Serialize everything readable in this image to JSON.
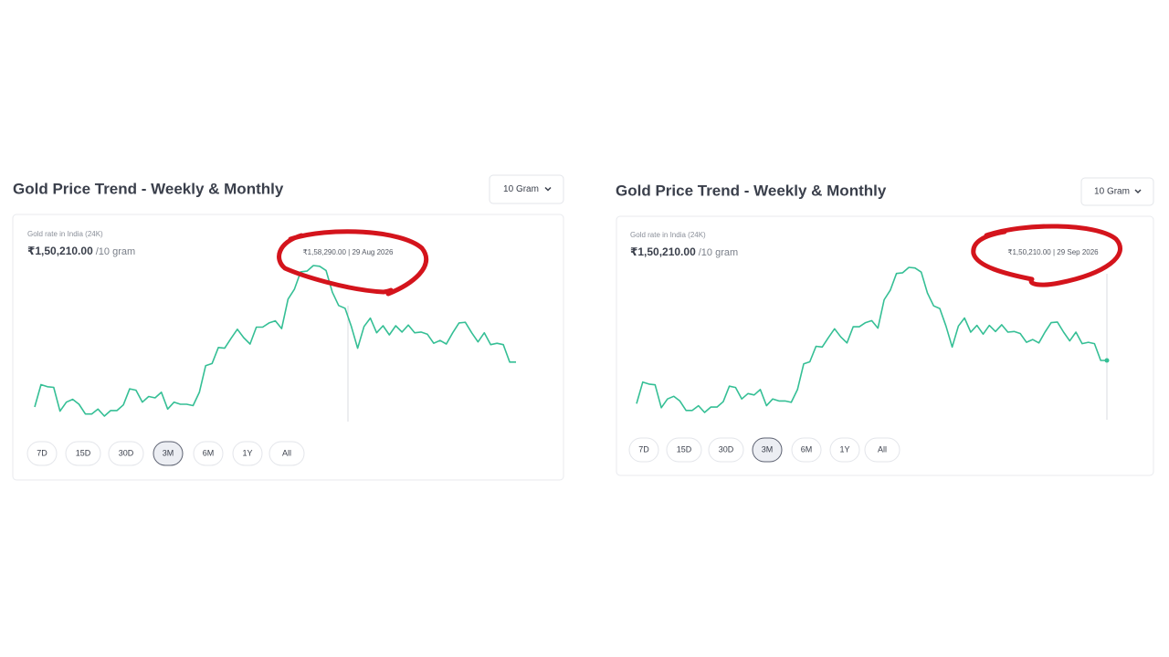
{
  "panels": [
    {
      "title": "Gold Price Trend - Weekly & Monthly",
      "unit_select": "10 Gram",
      "caption": "Gold rate in India (24K)",
      "price": "₹1,50,210.00",
      "price_unit": "/10 gram",
      "tooltip": "₹1,58,290.00 | 29 Aug 2026",
      "ranges": [
        "7D",
        "15D",
        "30D",
        "3M",
        "6M",
        "1Y",
        "All"
      ],
      "active_range": "3M",
      "chart": {
        "type": "line",
        "color": "#35bf95",
        "values": [
          143800,
          147000,
          146700,
          146600,
          143200,
          144500,
          144900,
          144200,
          142800,
          142800,
          143500,
          142500,
          143300,
          143300,
          144100,
          146400,
          146200,
          144500,
          145300,
          145100,
          145900,
          143500,
          144500,
          144200,
          144200,
          144000,
          145900,
          149700,
          150000,
          152300,
          152200,
          153600,
          154900,
          153700,
          152800,
          155200,
          155200,
          155800,
          156100,
          155000,
          159200,
          160600,
          163100,
          163200,
          164000,
          163900,
          163300,
          160200,
          158290,
          157900,
          155300,
          152200,
          155300,
          156500,
          154400,
          155400,
          154100,
          155400,
          154500,
          155500,
          154400,
          154500,
          154200,
          152900,
          153300,
          152800,
          154400,
          155800,
          155900,
          154400,
          153100,
          154400,
          152700,
          152900,
          152700,
          150210,
          150210
        ]
      }
    },
    {
      "title": "Gold Price Trend - Weekly & Monthly",
      "unit_select": "10 Gram",
      "caption": "Gold rate in India (24K)",
      "price": "₹1,50,210.00",
      "price_unit": "/10 gram",
      "tooltip": "₹1,50,210.00 | 29 Sep 2026",
      "ranges": [
        "7D",
        "15D",
        "30D",
        "3M",
        "6M",
        "1Y",
        "All"
      ],
      "active_range": "3M",
      "chart": {
        "type": "line",
        "color": "#35bf95",
        "values": [
          143800,
          147000,
          146700,
          146600,
          143200,
          144500,
          144900,
          144200,
          142800,
          142800,
          143500,
          142500,
          143300,
          143300,
          144100,
          146400,
          146200,
          144500,
          145300,
          145100,
          145900,
          143500,
          144500,
          144200,
          144200,
          144000,
          145900,
          149700,
          150000,
          152300,
          152200,
          153600,
          154900,
          153700,
          152800,
          155200,
          155200,
          155800,
          156100,
          155000,
          159200,
          160600,
          163100,
          163200,
          164000,
          163900,
          163300,
          160200,
          158290,
          157900,
          155300,
          152200,
          155300,
          156500,
          154400,
          155400,
          154100,
          155400,
          154500,
          155500,
          154400,
          154500,
          154200,
          152900,
          153300,
          152800,
          154400,
          155800,
          155900,
          154400,
          153100,
          154400,
          152700,
          152900,
          152700,
          150210,
          150210
        ]
      }
    }
  ]
}
